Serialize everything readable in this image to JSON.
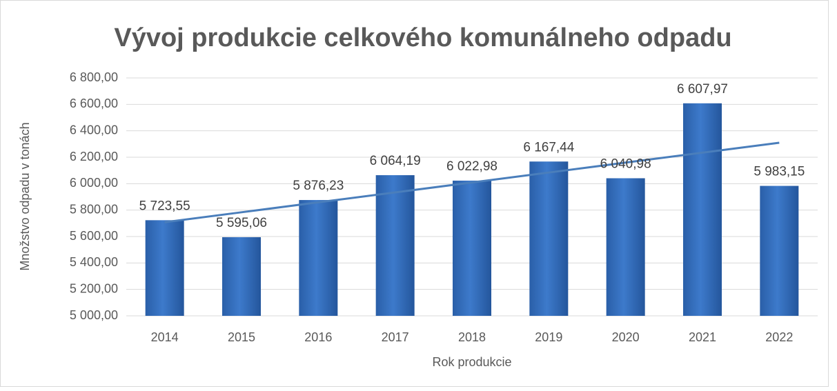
{
  "chart_data": {
    "type": "bar",
    "title": "Vývoj produkcie celkového komunálneho odpadu",
    "x_label": "Rok produkcie",
    "y_label": "Množstvo odpadu v tonách",
    "categories": [
      "2014",
      "2015",
      "2016",
      "2017",
      "2018",
      "2019",
      "2020",
      "2021",
      "2022"
    ],
    "values": [
      5723.55,
      5595.06,
      5876.23,
      6064.19,
      6022.98,
      6167.44,
      6040.98,
      6607.97,
      5983.15
    ],
    "value_labels": [
      "5 723,55",
      "5 595,06",
      "5 876,23",
      "6 064,19",
      "6 022,98",
      "6 167,44",
      "6 040,98",
      "6 607,97",
      "5 983,15"
    ],
    "color": "#3d7acb",
    "ylim": [
      5000,
      6800
    ],
    "yticks": [
      {
        "value": 5000,
        "label": "5 000,00"
      },
      {
        "value": 5200,
        "label": "5 200,00"
      },
      {
        "value": 5400,
        "label": "5 400,00"
      },
      {
        "value": 5600,
        "label": "5 600,00"
      },
      {
        "value": 5800,
        "label": "5 800,00"
      },
      {
        "value": 6000,
        "label": "6 000,00"
      },
      {
        "value": 6200,
        "label": "6 200,00"
      },
      {
        "value": 6400,
        "label": "6 400,00"
      },
      {
        "value": 6600,
        "label": "6 600,00"
      },
      {
        "value": 6800,
        "label": "6 800,00"
      }
    ],
    "grid": true,
    "trendline": {
      "type": "linear",
      "color": "#4a7ebb"
    }
  }
}
